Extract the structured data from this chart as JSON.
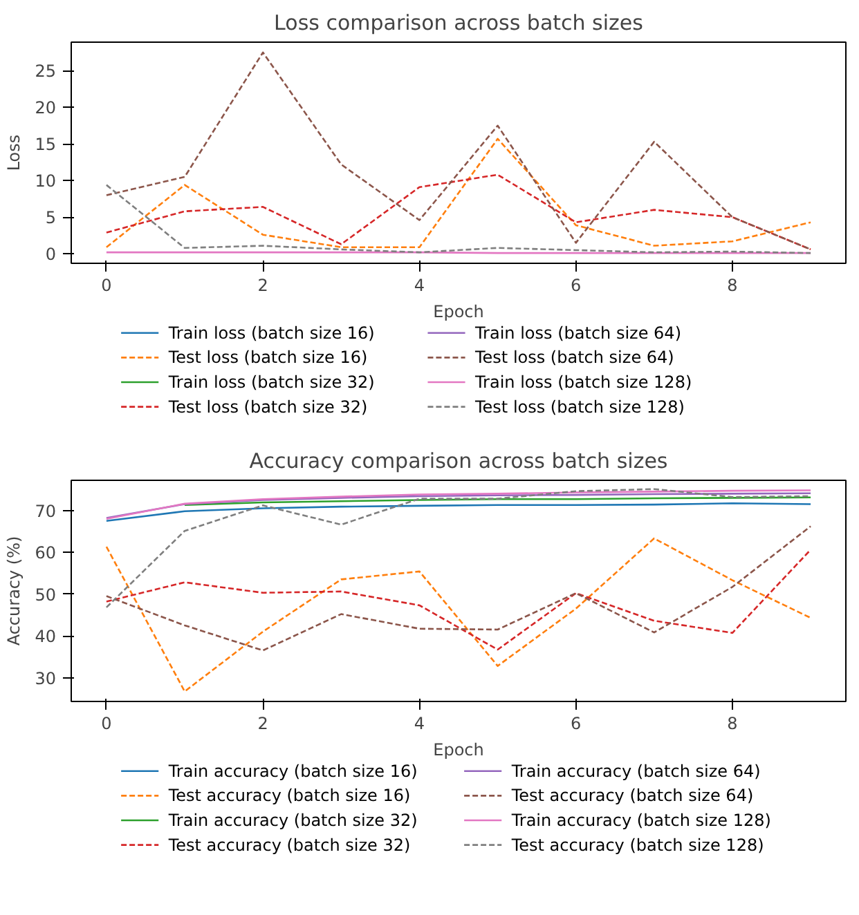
{
  "chart_data": [
    {
      "type": "line",
      "title": "Loss comparison across batch sizes",
      "xlabel": "Epoch",
      "ylabel": "Loss",
      "x": [
        0,
        1,
        2,
        3,
        4,
        5,
        6,
        7,
        8,
        9
      ],
      "xlim": [
        -0.45,
        9.45
      ],
      "ylim": [
        -1.3,
        28.9
      ],
      "xticks": [
        0,
        2,
        4,
        6,
        8
      ],
      "yticks": [
        0,
        5,
        10,
        15,
        20,
        25
      ],
      "grid": false,
      "legend": "bottom",
      "marker": "none",
      "series": [
        {
          "name": "Train loss (batch size 16)",
          "color": "#1f77b4",
          "line_style": "solid",
          "values": [
            null,
            null,
            null,
            null,
            null,
            null,
            null,
            null,
            null,
            null
          ]
        },
        {
          "name": "Test loss (batch size 16)",
          "color": "#ff7f0e",
          "line_style": "dashed",
          "values": [
            0.9,
            9.4,
            2.6,
            0.9,
            0.9,
            15.7,
            3.9,
            1.1,
            1.7,
            4.3
          ]
        },
        {
          "name": "Train loss (batch size 32)",
          "color": "#2ca02c",
          "line_style": "solid",
          "values": [
            null,
            null,
            null,
            null,
            null,
            null,
            null,
            null,
            null,
            null
          ]
        },
        {
          "name": "Test loss (batch size 32)",
          "color": "#d62728",
          "line_style": "dashed",
          "values": [
            2.9,
            5.8,
            6.4,
            1.3,
            9.1,
            10.8,
            4.3,
            6.0,
            5.0,
            0.6
          ]
        },
        {
          "name": "Train loss (batch size 64)",
          "color": "#9467bd",
          "line_style": "solid",
          "values": [
            null,
            null,
            null,
            null,
            null,
            null,
            null,
            null,
            null,
            null
          ]
        },
        {
          "name": "Test loss (batch size 64)",
          "color": "#8c564b",
          "line_style": "dashed",
          "values": [
            8.0,
            10.5,
            27.5,
            12.2,
            4.6,
            17.5,
            1.5,
            15.3,
            5.0,
            0.6
          ]
        },
        {
          "name": "Train loss (batch size 128)",
          "color": "#e377c2",
          "line_style": "solid",
          "values": [
            0.2,
            0.2,
            0.2,
            0.2,
            0.2,
            0.1,
            0.1,
            0.1,
            0.1,
            0.1
          ]
        },
        {
          "name": "Test loss (batch size 128)",
          "color": "#7f7f7f",
          "line_style": "dashed",
          "values": [
            9.4,
            0.8,
            1.1,
            0.6,
            0.2,
            0.8,
            0.5,
            0.2,
            0.3,
            0.1
          ]
        }
      ]
    },
    {
      "type": "line",
      "title": "Accuracy comparison across batch sizes",
      "xlabel": "Epoch",
      "ylabel": "Accuracy (%)",
      "x": [
        0,
        1,
        2,
        3,
        4,
        5,
        6,
        7,
        8,
        9
      ],
      "xlim": [
        -0.45,
        9.45
      ],
      "ylim": [
        24.3,
        77.2
      ],
      "xticks": [
        0,
        2,
        4,
        6,
        8
      ],
      "yticks": [
        30,
        40,
        50,
        60,
        70
      ],
      "grid": false,
      "legend": "bottom",
      "marker": "none",
      "series": [
        {
          "name": "Train accuracy (batch size 16)",
          "color": "#1f77b4",
          "line_style": "solid",
          "values": [
            67.5,
            69.8,
            70.5,
            70.9,
            71.1,
            71.3,
            71.3,
            71.4,
            71.7,
            71.5
          ]
        },
        {
          "name": "Test accuracy (batch size 16)",
          "color": "#ff7f0e",
          "line_style": "dashed",
          "values": [
            61.3,
            26.7,
            41.0,
            53.5,
            55.4,
            32.8,
            46.5,
            63.3,
            53.3,
            44.3
          ]
        },
        {
          "name": "Train accuracy (batch size 32)",
          "color": "#2ca02c",
          "line_style": "solid",
          "values": [
            null,
            71.3,
            71.9,
            72.2,
            72.5,
            72.7,
            72.7,
            72.9,
            73.0,
            73.1
          ]
        },
        {
          "name": "Test accuracy (batch size 32)",
          "color": "#d62728",
          "line_style": "dashed",
          "values": [
            48.2,
            52.8,
            50.3,
            50.6,
            47.3,
            36.7,
            50.2,
            43.6,
            40.7,
            60.6
          ]
        },
        {
          "name": "Train accuracy (batch size 64)",
          "color": "#9467bd",
          "line_style": "solid",
          "values": [
            68.2,
            71.5,
            72.5,
            73.0,
            73.4,
            73.6,
            73.7,
            73.9,
            74.0,
            74.1
          ]
        },
        {
          "name": "Test accuracy (batch size 64)",
          "color": "#8c564b",
          "line_style": "dashed",
          "values": [
            49.5,
            42.5,
            36.5,
            45.2,
            41.7,
            41.5,
            50.2,
            40.8,
            51.7,
            66.2
          ]
        },
        {
          "name": "Train accuracy (batch size 128)",
          "color": "#e377c2",
          "line_style": "solid",
          "values": [
            68.0,
            71.6,
            72.7,
            73.3,
            73.8,
            74.0,
            74.3,
            74.5,
            74.7,
            74.8
          ]
        },
        {
          "name": "Test accuracy (batch size 128)",
          "color": "#7f7f7f",
          "line_style": "dashed",
          "values": [
            46.8,
            65.1,
            71.2,
            66.6,
            72.8,
            72.8,
            74.6,
            75.1,
            73.2,
            73.4
          ]
        }
      ]
    }
  ]
}
